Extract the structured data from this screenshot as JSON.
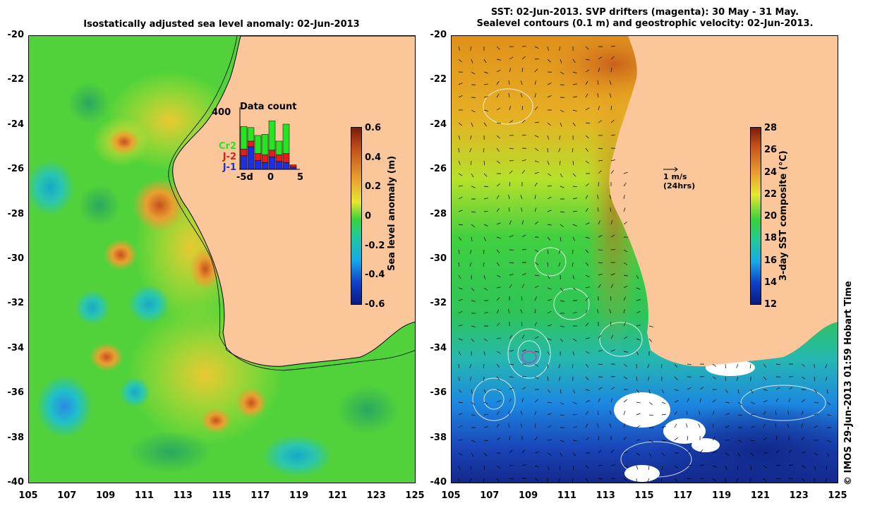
{
  "left": {
    "title": "Isostatically adjusted sea level anomaly: 02-Jun-2013",
    "colorbar_label": "Sea level anomaly (m)",
    "colorbar_ticks": [
      "0.6",
      "0.4",
      "0.2",
      "0",
      "-0.2",
      "-0.4",
      "-0.6"
    ],
    "inset": {
      "title": "Data count",
      "ytick": "400",
      "xticks": [
        "-5d",
        "0",
        "5"
      ],
      "legend": [
        {
          "label": "Cr2",
          "color": "#22e622"
        },
        {
          "label": "J-2",
          "color": "#e61c1c"
        },
        {
          "label": "J-1",
          "color": "#1c2ee6"
        }
      ],
      "bars": [
        {
          "j1": 60,
          "j2": 30,
          "cr2": 100
        },
        {
          "j1": 100,
          "j2": 25,
          "cr2": 60
        },
        {
          "j1": 40,
          "j2": 30,
          "cr2": 80
        },
        {
          "j1": 30,
          "j2": 35,
          "cr2": 90
        },
        {
          "j1": 55,
          "j2": 30,
          "cr2": 130
        },
        {
          "j1": 35,
          "j2": 30,
          "cr2": 60
        },
        {
          "j1": 30,
          "j2": 40,
          "cr2": 130
        },
        {
          "j1": 10,
          "j2": 10,
          "cr2": 0
        }
      ]
    }
  },
  "right": {
    "title_line1": "SST: 02-Jun-2013. SVP drifters (magenta): 30 May - 31 May.",
    "title_line2": "Sealevel contours (0.1 m) and geostrophic velocity: 02-Jun-2013.",
    "colorbar_label": "3-day SST composite (°C)",
    "colorbar_ticks": [
      "28",
      "26",
      "24",
      "22",
      "20",
      "18",
      "16",
      "14",
      "12"
    ],
    "scale_arrow_line1": "1 m/s",
    "scale_arrow_line2": "(24hrs)"
  },
  "axes": {
    "y_ticks": [
      "-20",
      "-22",
      "-24",
      "-26",
      "-28",
      "-30",
      "-32",
      "-34",
      "-36",
      "-38",
      "-40"
    ],
    "x_ticks": [
      "105",
      "107",
      "109",
      "111",
      "113",
      "115",
      "117",
      "119",
      "121",
      "123",
      "125"
    ]
  },
  "credit": "© IMOS 29-Jun-2013 01:59 Hobart Time",
  "colors": {
    "land": "#fbc79a",
    "ocean_green": "#36d23a",
    "ocean_yellow": "#e0e632",
    "warm_orange": "#e8a030",
    "cold_cyan": "#2ac6b0",
    "cold_blue": "#1050d0",
    "deep_blue": "#102a90"
  }
}
